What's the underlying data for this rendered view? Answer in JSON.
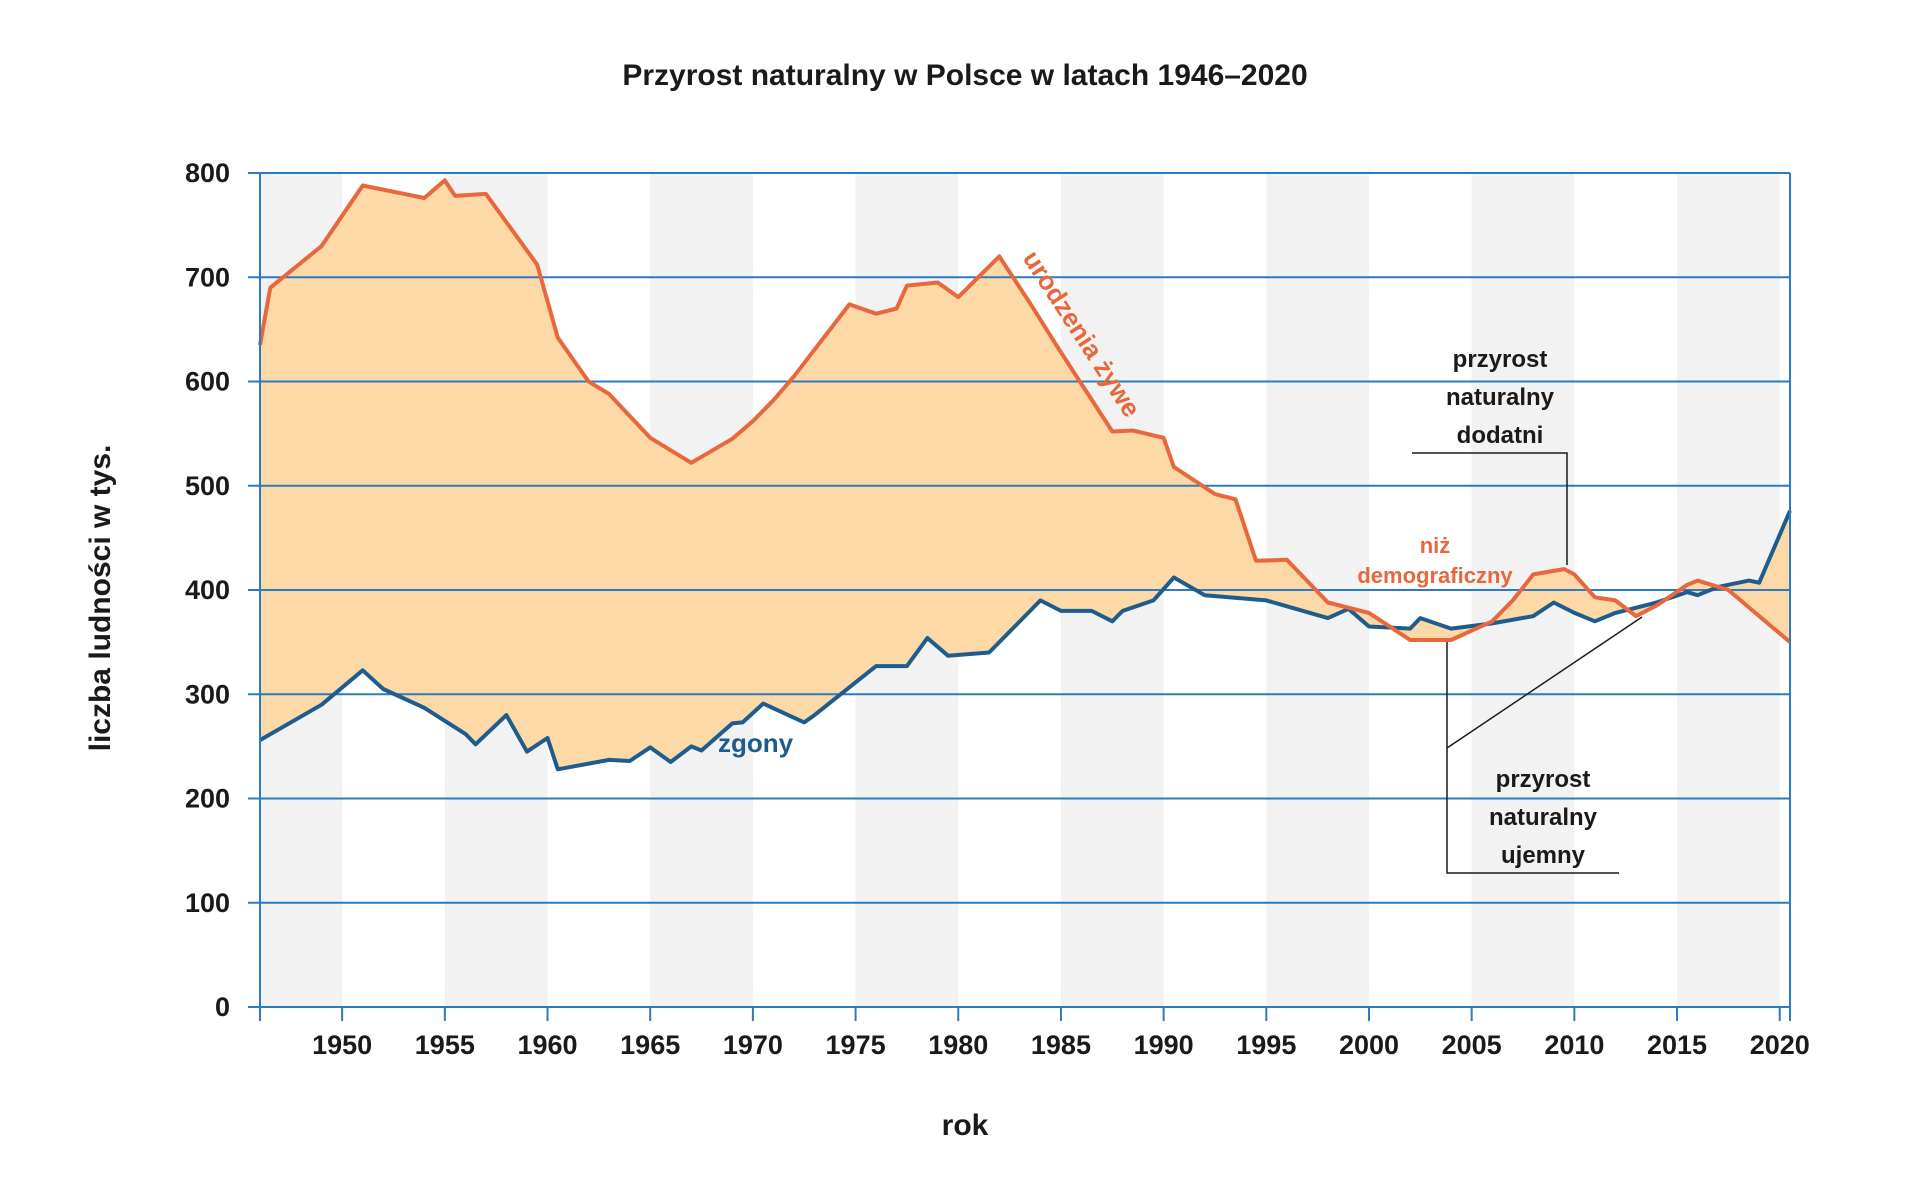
{
  "chart_data": {
    "type": "area",
    "title": "Przyrost naturalny w Polsce w latach 1946–2020",
    "xlabel": "rok",
    "ylabel": "liczba ludności w tys.",
    "xlim": [
      1946,
      2020.5
    ],
    "ylim": [
      0,
      800
    ],
    "x_ticks": [
      1950,
      1955,
      1960,
      1965,
      1970,
      1975,
      1980,
      1985,
      1990,
      1995,
      2000,
      2005,
      2010,
      2015,
      2020
    ],
    "y_ticks": [
      0,
      100,
      200,
      300,
      400,
      500,
      600,
      700,
      800
    ],
    "x_tick_labels": [
      "1950",
      "1955",
      "1960",
      "1965",
      "1970",
      "1975",
      "1980",
      "1985",
      "1990",
      "1995",
      "2000",
      "2005",
      "2010",
      "2015",
      "2020"
    ],
    "y_tick_labels": [
      "0",
      "100",
      "200",
      "300",
      "400",
      "500",
      "600",
      "700",
      "800"
    ],
    "colors": {
      "births": "#e8673c",
      "deaths": "#1f5c8e",
      "fill": "#fdd9a8",
      "band": "#f2f2f2",
      "grid": "#2b7bc0",
      "text": "#1a1a1a"
    },
    "series": [
      {
        "name": "urodzenia żywe",
        "x": [
          1946,
          1946.5,
          1949,
          1951,
          1954,
          1955,
          1955.5,
          1957,
          1959.5,
          1960.5,
          1962,
          1963,
          1965,
          1967,
          1969,
          1970,
          1971,
          1972,
          1974.7,
          1976,
          1977,
          1977.5,
          1979,
          1980,
          1982,
          1983.5,
          1985,
          1987.5,
          1988.5,
          1990,
          1990.5,
          1992.5,
          1993.5,
          1994.5,
          1996,
          1998,
          2000,
          2002,
          2004,
          2006,
          2007,
          2008,
          2009.5,
          2010,
          2011,
          2012,
          2013,
          2014,
          2015.5,
          2016,
          2017.5,
          2019,
          2020.5
        ],
        "values": [
          635,
          690,
          730,
          788,
          776,
          793,
          778,
          780,
          712,
          642,
          600,
          588,
          546,
          522,
          545,
          562,
          582,
          605,
          674,
          665,
          670,
          692,
          695,
          681,
          720,
          675,
          628,
          552,
          553,
          546,
          518,
          492,
          487,
          428,
          429,
          388,
          378,
          352,
          352,
          370,
          390,
          415,
          420,
          415,
          393,
          390,
          375,
          385,
          405,
          409,
          400,
          375,
          350
        ]
      },
      {
        "name": "zgony",
        "x": [
          1946,
          1949,
          1951,
          1952,
          1954,
          1956,
          1956.5,
          1958,
          1959,
          1960,
          1960.5,
          1963,
          1964,
          1965,
          1966,
          1967,
          1967.5,
          1969,
          1969.5,
          1970.5,
          1972.5,
          1973,
          1976,
          1977.5,
          1978.5,
          1979.5,
          1981.5,
          1984,
          1985,
          1986.5,
          1987.5,
          1988,
          1989.5,
          1990.5,
          1992,
          1995,
          1998,
          1999,
          2000,
          2002,
          2002.5,
          2004,
          2006,
          2008,
          2009,
          2010,
          2011,
          2012,
          2014,
          2015.5,
          2016,
          2017,
          2018.5,
          2019,
          2020.5
        ],
        "values": [
          256,
          290,
          323,
          305,
          287,
          262,
          252,
          280,
          245,
          258,
          228,
          237,
          236,
          249,
          235,
          250,
          246,
          272,
          273,
          291,
          273,
          280,
          327,
          327,
          354,
          337,
          340,
          390,
          380,
          380,
          370,
          380,
          390,
          412,
          395,
          390,
          373,
          382,
          365,
          363,
          373,
          363,
          368,
          375,
          388,
          378,
          370,
          378,
          388,
          398,
          395,
          403,
          409,
          407,
          476
        ]
      }
    ],
    "annotations": {
      "births_label": "urodzenia żywe",
      "deaths_label": "zgony",
      "positive_line1": "przyrost",
      "positive_line2": "naturalny",
      "positive_line3": "dodatni",
      "low_line1": "niż",
      "low_line2": "demograficzny",
      "negative_line1": "przyrost",
      "negative_line2": "naturalny",
      "negative_line3": "ujemny"
    }
  }
}
